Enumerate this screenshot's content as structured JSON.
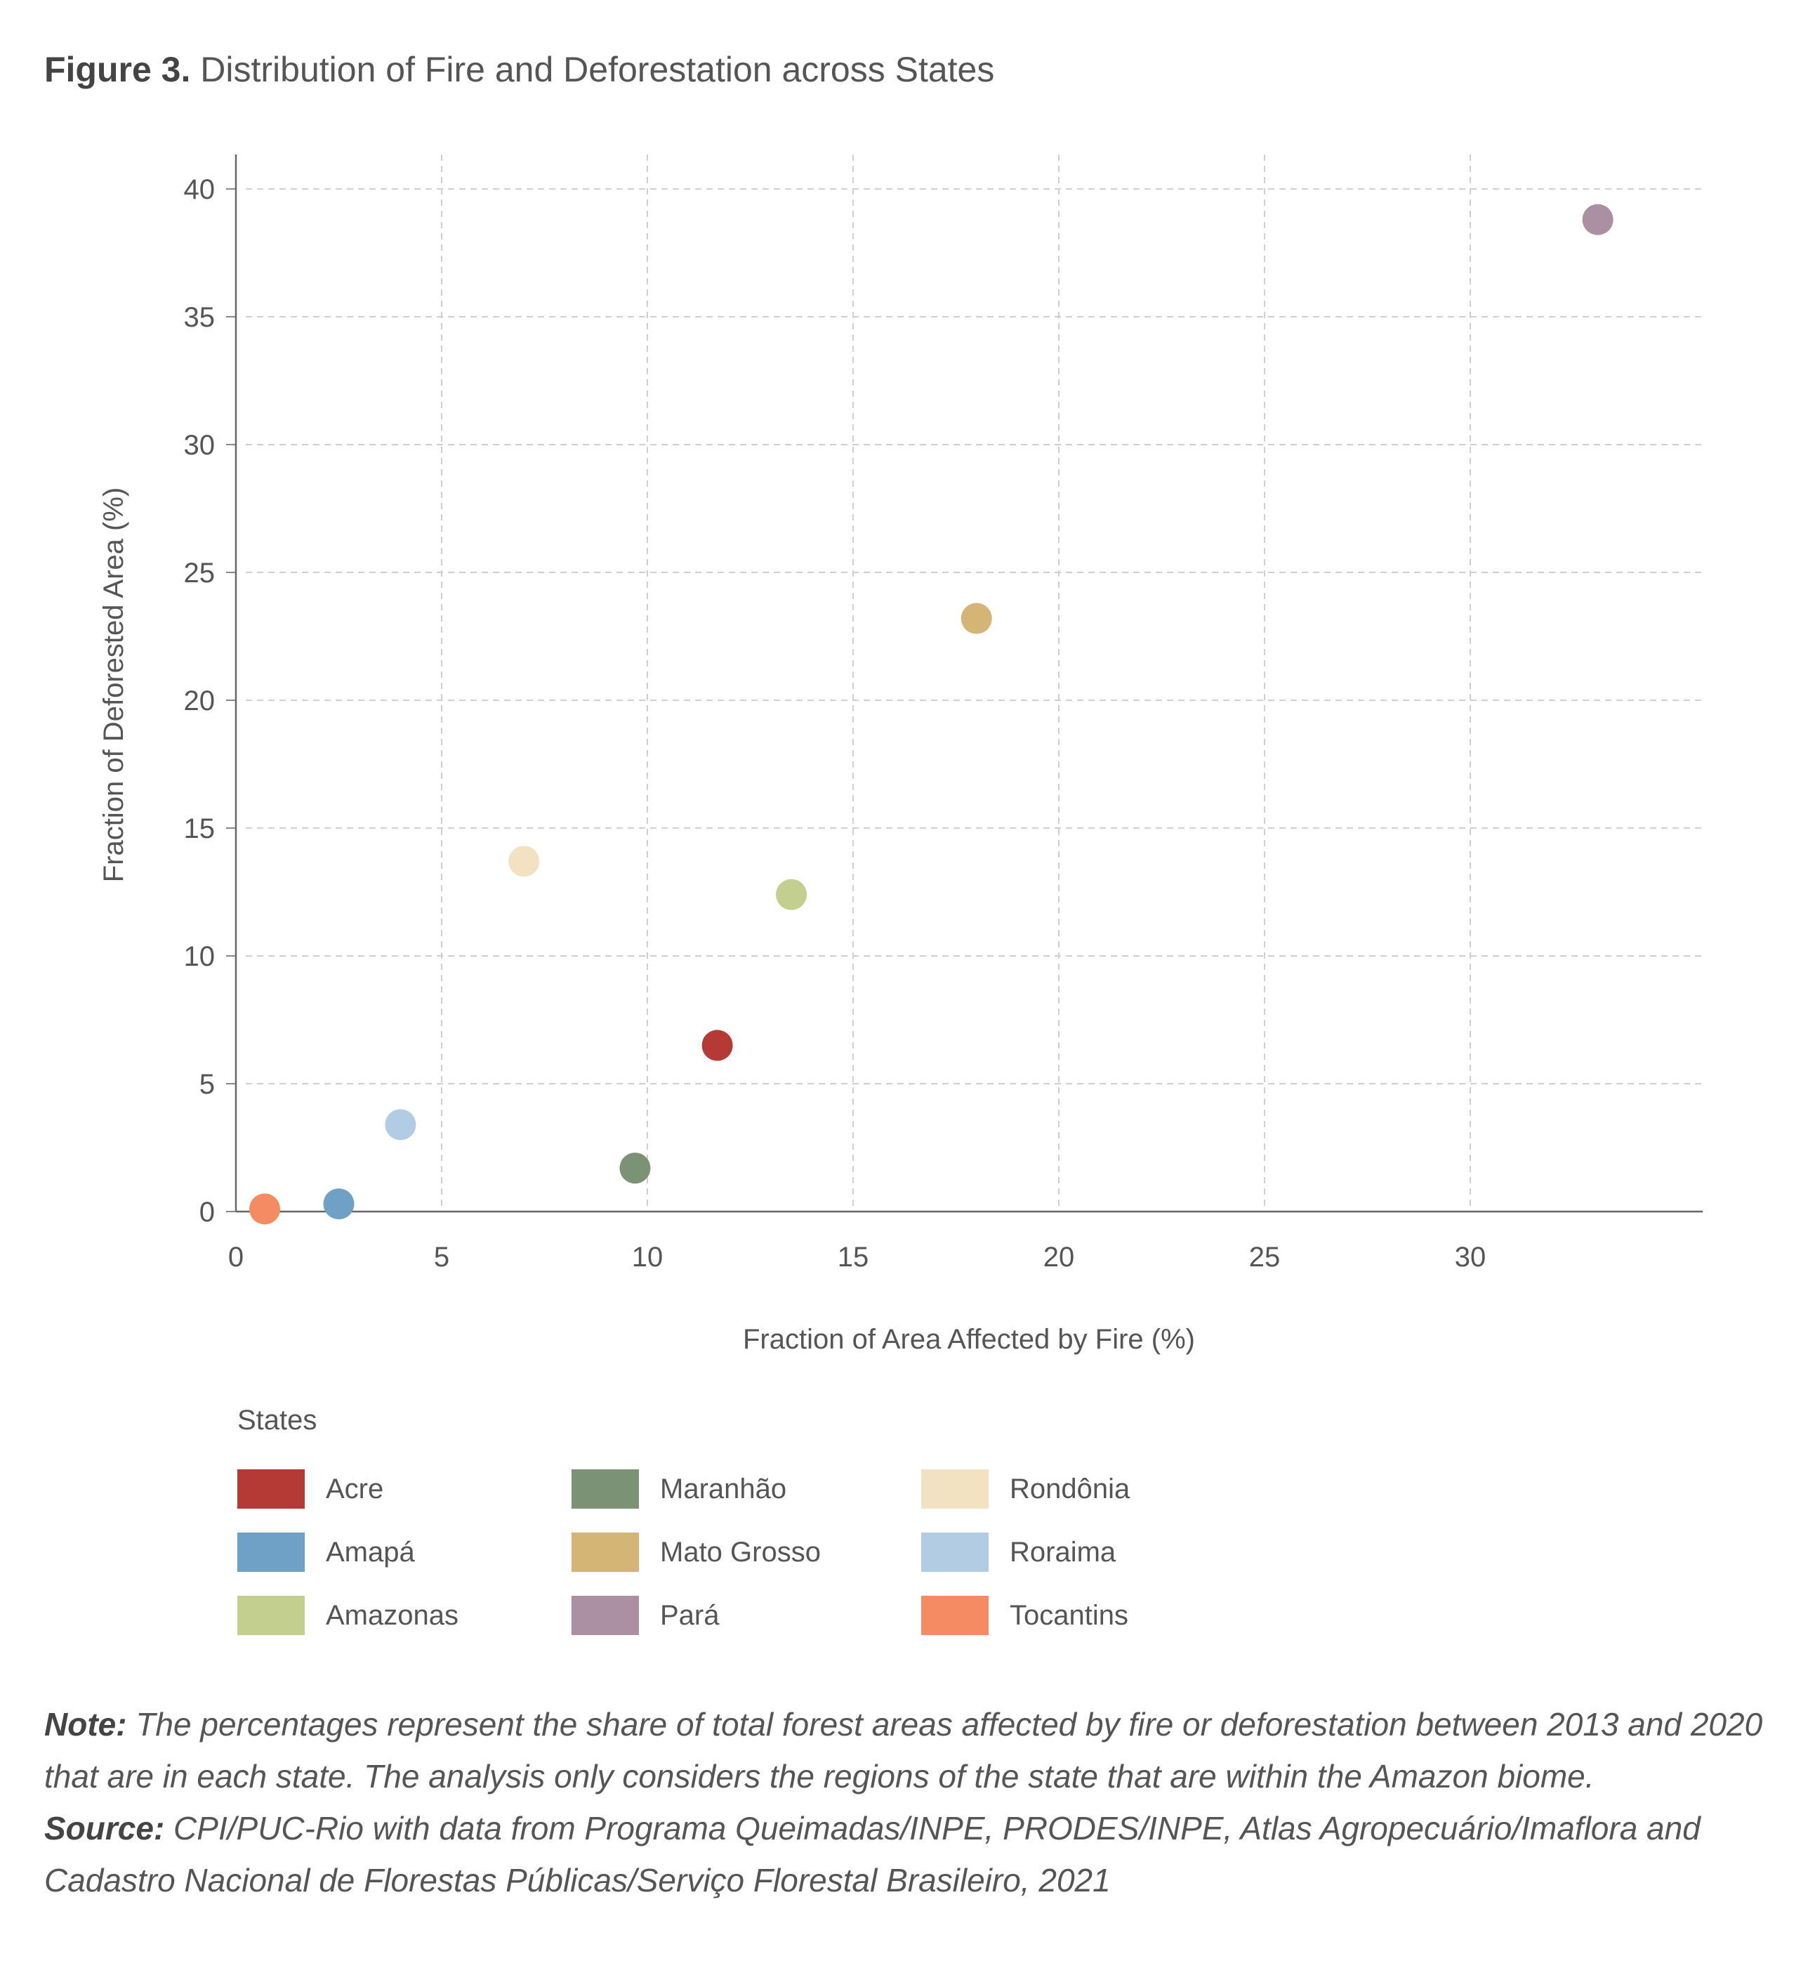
{
  "figure": {
    "label": "Figure 3.",
    "title": "Distribution of Fire and Deforestation across States"
  },
  "chart_data": {
    "type": "scatter",
    "xlabel": "Fraction of Area Affected by Fire (%)",
    "ylabel": "Fraction of Deforested Area (%)",
    "xlim": [
      0,
      36
    ],
    "ylim": [
      0,
      41.5
    ],
    "xticks": [
      0,
      5,
      10,
      15,
      20,
      25,
      30
    ],
    "yticks": [
      0,
      5,
      10,
      15,
      20,
      25,
      30,
      35,
      40
    ],
    "grid": true,
    "legend_title": "States",
    "legend_position": "bottom",
    "series": [
      {
        "name": "Acre",
        "color": "#b53a36",
        "x": 11.7,
        "y": 6.5
      },
      {
        "name": "Amapá",
        "color": "#6fa0c5",
        "x": 2.5,
        "y": 0.3
      },
      {
        "name": "Amazonas",
        "color": "#c3cf8f",
        "x": 13.5,
        "y": 12.4
      },
      {
        "name": "Maranhão",
        "color": "#7b9275",
        "x": 9.7,
        "y": 1.7
      },
      {
        "name": "Mato Grosso",
        "color": "#d4b576",
        "x": 18.0,
        "y": 23.2
      },
      {
        "name": "Pará",
        "color": "#ab8fa3",
        "x": 33.1,
        "y": 38.8
      },
      {
        "name": "Rondônia",
        "color": "#f2e2c2",
        "x": 7.0,
        "y": 13.7
      },
      {
        "name": "Roraima",
        "color": "#b2cde3",
        "x": 4.0,
        "y": 3.4
      },
      {
        "name": "Tocantins",
        "color": "#f58b62",
        "x": 0.7,
        "y": 0.1
      }
    ]
  },
  "footnote": {
    "note_label": "Note:",
    "note_text": " The percentages represent the share of total forest areas affected by fire or deforestation between 2013 and 2020 that are in each state. The analysis only considers the regions of the state that are within the Amazon biome.",
    "source_label": "Source:",
    "source_text": " CPI/PUC-Rio with data from Programa Queimadas/INPE, PRODES/INPE, Atlas Agropecuário/Imaflora and Cadastro Nacional de Florestas Públicas/Serviço Florestal Brasileiro, 2021"
  }
}
